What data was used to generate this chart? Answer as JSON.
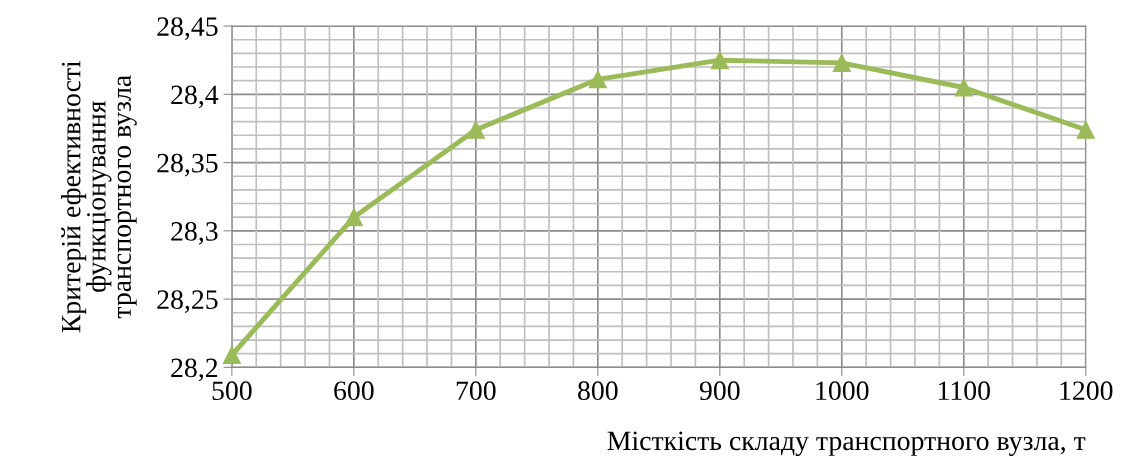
{
  "chart_data": {
    "type": "line",
    "xlabel": "Місткість складу транспортного вузла, т",
    "ylabel": "Критерій ефективності\nфункціонування\nтранспортного вузла",
    "x": [
      500,
      600,
      700,
      800,
      900,
      1000,
      1100,
      1200
    ],
    "series": [
      {
        "color": "#9bbb59",
        "values": [
          28.209,
          28.31,
          28.374,
          28.411,
          28.425,
          28.423,
          28.405,
          28.374
        ]
      }
    ],
    "marker": "triangle",
    "line_style": "solid",
    "grid": true,
    "legend": false,
    "xlim": [
      500,
      1200
    ],
    "xticks": [
      500,
      600,
      700,
      800,
      900,
      1000,
      1100,
      1200
    ],
    "ylim": [
      28.2,
      28.45
    ],
    "yticks": [
      {
        "value": 28.2,
        "label": "28,2"
      },
      {
        "value": 28.25,
        "label": "28,25"
      },
      {
        "value": 28.3,
        "label": "28,3"
      },
      {
        "value": 28.35,
        "label": "28,35"
      },
      {
        "value": 28.4,
        "label": "28,4"
      },
      {
        "value": 28.45,
        "label": "28,45"
      }
    ]
  }
}
